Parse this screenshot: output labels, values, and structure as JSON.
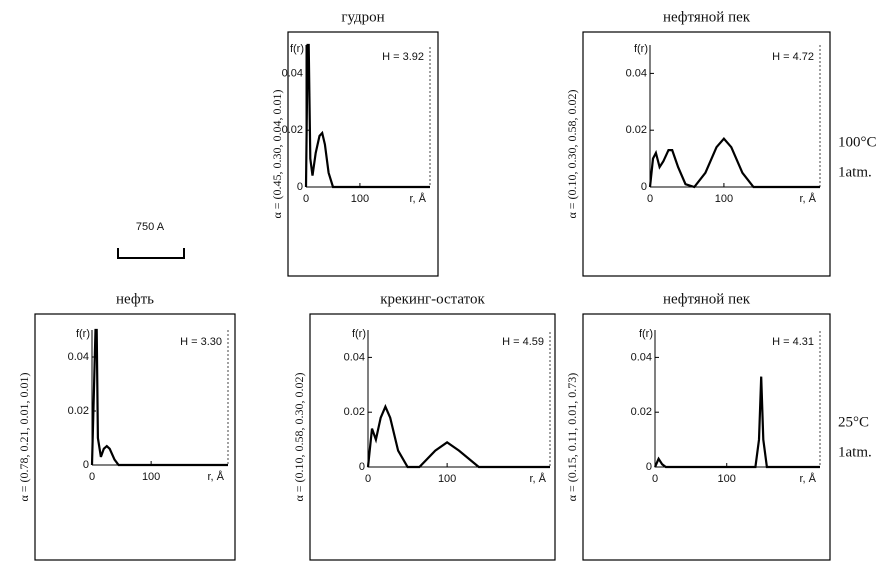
{
  "chart_data": [
    {
      "type": "line",
      "title": "гудрон",
      "side_label": "α = (0.45, 0.30, 0.04, 0.01)",
      "annotation": "H = 3.92",
      "ylabel": "f(r)",
      "xlabel": "r, Å",
      "color": "#000000",
      "x": [
        0,
        3,
        5,
        8,
        12,
        18,
        25,
        30,
        35,
        42,
        50,
        230
      ],
      "values": [
        0,
        0.05,
        0.05,
        0.01,
        0.004,
        0.012,
        0.018,
        0.019,
        0.015,
        0.005,
        0,
        0
      ],
      "xlim": [
        0,
        230
      ],
      "ylim": [
        0,
        0.05
      ],
      "xticks": [
        0,
        100
      ],
      "yticks": [
        0,
        0.02,
        0.04
      ]
    },
    {
      "type": "line",
      "title": "нефтяной пек",
      "side_label": "α = (0.10, 0.30, 0.58, 0.02)",
      "annotation": "H = 4.72",
      "ylabel": "f(r)",
      "xlabel": "r, Å",
      "color": "#000000",
      "x": [
        0,
        4,
        8,
        13,
        18,
        25,
        30,
        38,
        48,
        60,
        75,
        90,
        100,
        110,
        125,
        140,
        230
      ],
      "values": [
        0,
        0.01,
        0.012,
        0.007,
        0.009,
        0.013,
        0.013,
        0.007,
        0.001,
        0,
        0.005,
        0.014,
        0.017,
        0.014,
        0.005,
        0,
        0
      ],
      "xlim": [
        0,
        230
      ],
      "ylim": [
        0,
        0.05
      ],
      "xticks": [
        0,
        100
      ],
      "yticks": [
        0,
        0.02,
        0.04
      ]
    },
    {
      "type": "line",
      "title": "нефть",
      "side_label": "α = (0.78, 0.21, 0.01, 0.01)",
      "annotation": "H = 3.30",
      "ylabel": "f(r)",
      "xlabel": "r, Å",
      "color": "#000000",
      "x": [
        0,
        6,
        8,
        10,
        15,
        20,
        25,
        30,
        38,
        45,
        230
      ],
      "values": [
        0,
        0.05,
        0.05,
        0.01,
        0.003,
        0.006,
        0.007,
        0.006,
        0.002,
        0,
        0
      ],
      "xlim": [
        0,
        230
      ],
      "ylim": [
        0,
        0.05
      ],
      "xticks": [
        0,
        100
      ],
      "yticks": [
        0,
        0.02,
        0.04
      ]
    },
    {
      "type": "line",
      "title": "крекинг-остаток",
      "side_label": "α = (0.10, 0.58, 0.30, 0.02)",
      "annotation": "H = 4.59",
      "ylabel": "f(r)",
      "xlabel": "r, Å",
      "color": "#000000",
      "x": [
        0,
        5,
        10,
        16,
        22,
        28,
        38,
        50,
        65,
        85,
        100,
        115,
        140,
        230
      ],
      "values": [
        0,
        0.014,
        0.01,
        0.018,
        0.022,
        0.018,
        0.006,
        0,
        0,
        0.006,
        0.009,
        0.006,
        0,
        0
      ],
      "xlim": [
        0,
        230
      ],
      "ylim": [
        0,
        0.05
      ],
      "xticks": [
        0,
        100
      ],
      "yticks": [
        0,
        0.02,
        0.04
      ]
    },
    {
      "type": "line",
      "title": "нефтяной пек",
      "side_label": "α = (0.15, 0.11, 0.01, 0.73)",
      "annotation": "H = 4.31",
      "ylabel": "f(r)",
      "xlabel": "r, Å",
      "color": "#000000",
      "x": [
        0,
        5,
        10,
        15,
        140,
        145,
        148,
        151,
        156,
        230
      ],
      "values": [
        0,
        0.003,
        0.001,
        0,
        0,
        0.01,
        0.033,
        0.01,
        0,
        0
      ],
      "xlim": [
        0,
        230
      ],
      "ylim": [
        0,
        0.05
      ],
      "xticks": [
        0,
        100
      ],
      "yticks": [
        0,
        0.02,
        0.04
      ]
    }
  ],
  "scale_bar": "750 A",
  "conditions": [
    {
      "temperature": "100°C",
      "pressure": "1atm."
    },
    {
      "temperature": "25°C",
      "pressure": "1atm."
    }
  ]
}
